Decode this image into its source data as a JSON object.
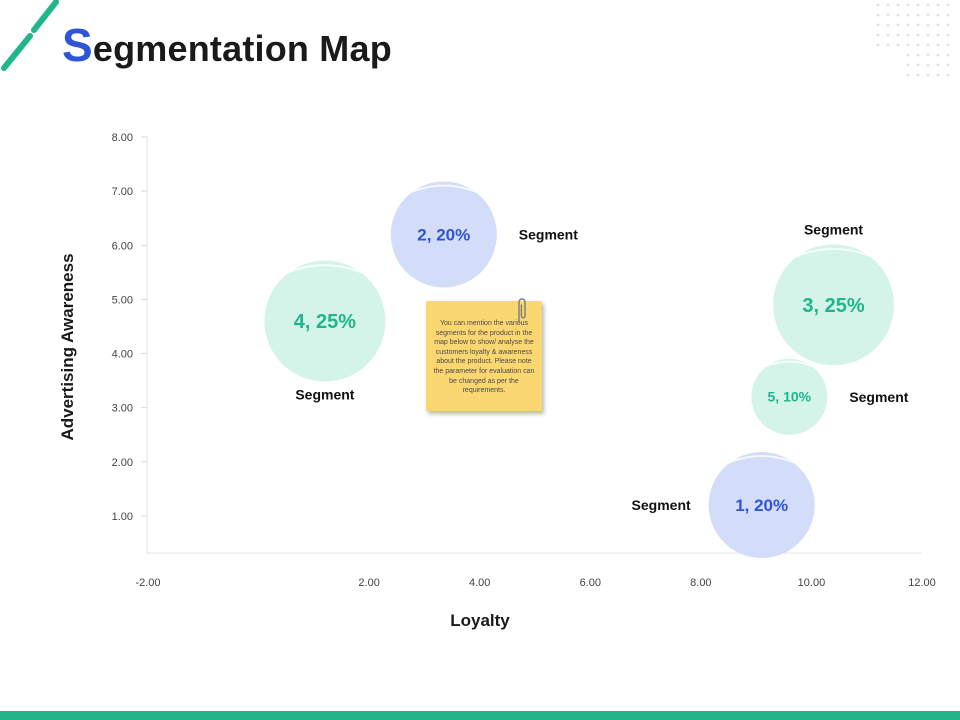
{
  "slide": {
    "title_first_letter": "S",
    "title_rest": "egmentation Map",
    "note_text": "You can mention the various segments for the product in the map below to show/ analyse the customers loyalty & awareness about the product. Please note the parameter for evaluation can be changed as per the requirements."
  },
  "colors": {
    "accent_blue": "#2f55d4",
    "accent_green": "#20b58a",
    "bubble_blue_fill": "#d3dcf8",
    "bubble_green_fill": "#d4f4ea",
    "note_fill": "#fbd772"
  },
  "chart_data": {
    "type": "bubble",
    "xlabel": "Loyalty",
    "ylabel": "Advertising Awareness",
    "x_ticks": [
      "-2.00",
      "2.00",
      "4.00",
      "6.00",
      "8.00",
      "10.00",
      "12.00"
    ],
    "y_ticks": [
      "1.00",
      "2.00",
      "3.00",
      "4.00",
      "5.00",
      "6.00",
      "7.00",
      "8.00"
    ],
    "xlim": [
      -2,
      12
    ],
    "ylim": [
      0,
      8.5
    ],
    "grid": false,
    "points": [
      {
        "label": "4, 25%",
        "x": 1.2,
        "y": 4.6,
        "size": 25,
        "color": "green",
        "segment_label": "Segment",
        "segment_label_position": "below"
      },
      {
        "label": "2, 20%",
        "x": 3.35,
        "y": 6.2,
        "size": 20,
        "color": "blue",
        "segment_label": "Segment",
        "segment_label_position": "right"
      },
      {
        "label": "3, 25%",
        "x": 10.4,
        "y": 4.9,
        "size": 25,
        "color": "green",
        "segment_label": "Segment",
        "segment_label_position": "above"
      },
      {
        "label": "5, 10%",
        "x": 9.6,
        "y": 3.2,
        "size": 10,
        "color": "green",
        "segment_label": "Segment",
        "segment_label_position": "right"
      },
      {
        "label": "1, 20%",
        "x": 9.1,
        "y": 1.2,
        "size": 20,
        "color": "blue",
        "segment_label": "Segment",
        "segment_label_position": "left"
      }
    ]
  }
}
